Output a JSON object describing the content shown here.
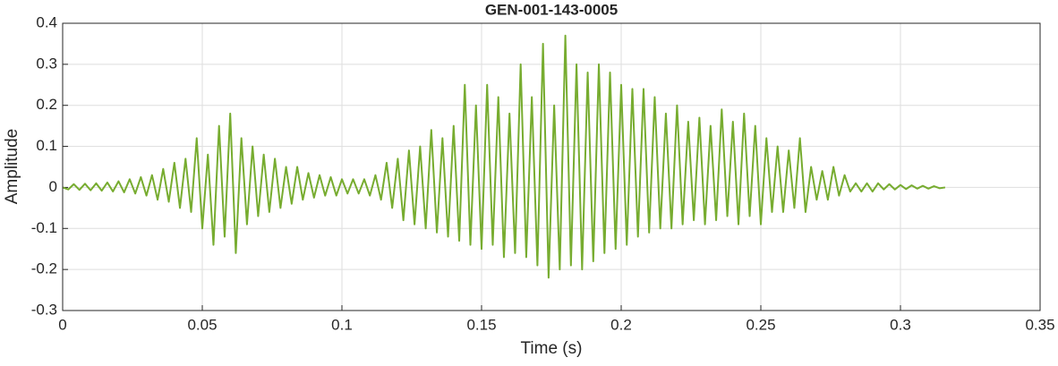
{
  "chart_data": {
    "type": "line",
    "title": "GEN-001-143-0005",
    "x_label": "Time (s)",
    "y_label": "Amplitude",
    "x": [
      0,
      0.002,
      0.004,
      0.006,
      0.008,
      0.01,
      0.012,
      0.014,
      0.016,
      0.018,
      0.02,
      0.022,
      0.024,
      0.026,
      0.028,
      0.03,
      0.032,
      0.034,
      0.036,
      0.038,
      0.04,
      0.042,
      0.044,
      0.046,
      0.048,
      0.05,
      0.052,
      0.054,
      0.056,
      0.058,
      0.06,
      0.062,
      0.064,
      0.066,
      0.068,
      0.07,
      0.072,
      0.074,
      0.076,
      0.078,
      0.08,
      0.082,
      0.084,
      0.086,
      0.088,
      0.09,
      0.092,
      0.094,
      0.096,
      0.098,
      0.1,
      0.102,
      0.104,
      0.106,
      0.108,
      0.11,
      0.112,
      0.114,
      0.116,
      0.118,
      0.12,
      0.122,
      0.124,
      0.126,
      0.128,
      0.13,
      0.132,
      0.134,
      0.136,
      0.138,
      0.14,
      0.142,
      0.144,
      0.146,
      0.148,
      0.15,
      0.152,
      0.154,
      0.156,
      0.158,
      0.16,
      0.162,
      0.164,
      0.166,
      0.168,
      0.17,
      0.172,
      0.174,
      0.176,
      0.178,
      0.18,
      0.182,
      0.184,
      0.186,
      0.188,
      0.19,
      0.192,
      0.194,
      0.196,
      0.198,
      0.2,
      0.202,
      0.204,
      0.206,
      0.208,
      0.21,
      0.212,
      0.214,
      0.216,
      0.218,
      0.22,
      0.222,
      0.224,
      0.226,
      0.228,
      0.23,
      0.232,
      0.234,
      0.236,
      0.238,
      0.24,
      0.242,
      0.244,
      0.246,
      0.248,
      0.25,
      0.252,
      0.254,
      0.256,
      0.258,
      0.26,
      0.262,
      0.264,
      0.266,
      0.268,
      0.27,
      0.272,
      0.274,
      0.276,
      0.278,
      0.28,
      0.282,
      0.284,
      0.286,
      0.288,
      0.29,
      0.292,
      0.294,
      0.296,
      0.298,
      0.3,
      0.302,
      0.304,
      0.306,
      0.308,
      0.31,
      0.312,
      0.314,
      0.316
    ],
    "series": [
      {
        "color": "#77ac30",
        "values": [
          0,
          -0.005,
          0.008,
          -0.006,
          0.009,
          -0.007,
          0.01,
          -0.008,
          0.012,
          -0.01,
          0.015,
          -0.012,
          0.02,
          -0.015,
          0.025,
          -0.02,
          0.03,
          -0.03,
          0.045,
          -0.035,
          0.06,
          -0.05,
          0.07,
          -0.06,
          0.12,
          -0.1,
          0.08,
          -0.14,
          0.15,
          -0.12,
          0.18,
          -0.16,
          0.12,
          -0.09,
          0.1,
          -0.07,
          0.08,
          -0.06,
          0.07,
          -0.05,
          0.05,
          -0.04,
          0.05,
          -0.03,
          0.035,
          -0.025,
          0.03,
          -0.02,
          0.025,
          -0.02,
          0.02,
          -0.015,
          0.02,
          -0.015,
          0.02,
          -0.02,
          0.03,
          -0.03,
          0.06,
          -0.05,
          0.07,
          -0.08,
          0.09,
          -0.09,
          0.1,
          -0.1,
          0.14,
          -0.11,
          0.12,
          -0.12,
          0.15,
          -0.13,
          0.25,
          -0.14,
          0.2,
          -0.15,
          0.25,
          -0.14,
          0.22,
          -0.17,
          0.18,
          -0.16,
          0.3,
          -0.17,
          0.22,
          -0.19,
          0.35,
          -0.22,
          0.2,
          -0.2,
          0.37,
          -0.19,
          0.3,
          -0.2,
          0.28,
          -0.18,
          0.3,
          -0.16,
          0.28,
          -0.15,
          0.25,
          -0.14,
          0.24,
          -0.12,
          0.24,
          -0.11,
          0.22,
          -0.1,
          0.18,
          -0.1,
          0.2,
          -0.09,
          0.16,
          -0.08,
          0.17,
          -0.09,
          0.15,
          -0.08,
          0.19,
          -0.07,
          0.16,
          -0.09,
          0.18,
          -0.07,
          0.15,
          -0.09,
          0.12,
          -0.06,
          0.1,
          -0.06,
          0.09,
          -0.05,
          0.12,
          -0.06,
          0.05,
          -0.03,
          0.04,
          -0.03,
          0.05,
          -0.02,
          0.03,
          -0.01,
          0.01,
          -0.01,
          0.01,
          -0.01,
          0.01,
          -0.005,
          0.008,
          -0.005,
          0.006,
          -0.004,
          0.005,
          -0.003,
          0.004,
          -0.003,
          0.003,
          -0.002,
          0
        ]
      }
    ],
    "xlim": [
      0,
      0.35
    ],
    "xticks": [
      0,
      0.05,
      0.1,
      0.15,
      0.2,
      0.25,
      0.3,
      0.35
    ],
    "ylim": [
      -0.3,
      0.4
    ],
    "yticks": [
      -0.3,
      -0.2,
      -0.1,
      0,
      0.1,
      0.2,
      0.3,
      0.4
    ],
    "grid": true
  }
}
